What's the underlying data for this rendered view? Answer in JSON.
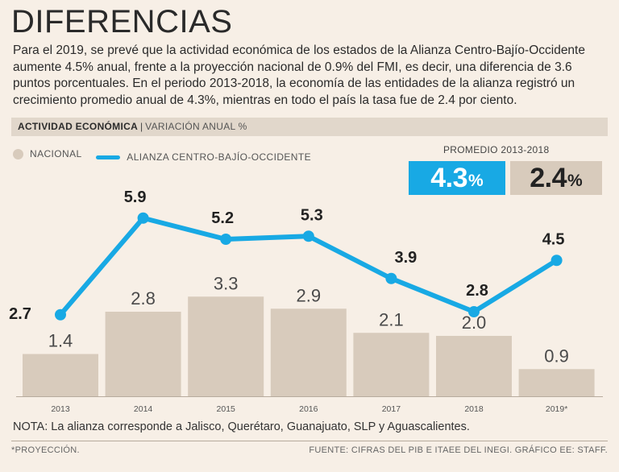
{
  "title": "DIFERENCIAS",
  "intro": "Para el 2019, se prevé que la actividad económica de los estados de la Alianza Centro-Bajío-Occidente aumente 4.5% anual, frente a la proyección nacional de 0.9% del FMI, es decir, una diferencia de 3.6 puntos porcentuales. En el periodo 2013-2018, la economía de las entidades de la alianza registró un crecimiento promedio anual de 4.3%, mientras en todo el país la tasa fue de 2.4 por ciento.",
  "section": {
    "bold": "ACTIVIDAD ECONÓMICA",
    "separator": "|",
    "light": "VARIACIÓN ANUAL %"
  },
  "legend": {
    "national": "NACIONAL",
    "alliance": "ALIANZA CENTRO-BAJÍO-OCCIDENTE"
  },
  "averages": {
    "title": "PROMEDIO 2013-2018",
    "alliance_value": "4.3",
    "national_value": "2.4",
    "unit": "%"
  },
  "colors": {
    "alliance": "#18a9e4",
    "national": "#d8cbbc"
  },
  "chart_data": {
    "type": "bar+line",
    "categories": [
      "2013",
      "2014",
      "2015",
      "2016",
      "2017",
      "2018",
      "2019*"
    ],
    "series": [
      {
        "name": "NACIONAL",
        "kind": "bar",
        "values": [
          1.4,
          2.8,
          3.3,
          2.9,
          2.1,
          2.0,
          0.9
        ],
        "labels": [
          "1.4",
          "2.8",
          "3.3",
          "2.9",
          "2.1",
          "2.0",
          "0.9"
        ]
      },
      {
        "name": "ALIANZA CENTRO-BAJÍO-OCCIDENTE",
        "kind": "line",
        "values": [
          2.7,
          5.9,
          5.2,
          5.3,
          3.9,
          2.8,
          4.5
        ],
        "labels": [
          "2.7",
          "5.9",
          "5.2",
          "5.3",
          "3.9",
          "2.8",
          "4.5"
        ]
      }
    ],
    "title": "ACTIVIDAD ECONÓMICA",
    "ylabel": "VARIACIÓN ANUAL %",
    "ylim": [
      0,
      6
    ]
  },
  "note": "NOTA: La alianza corresponde a Jalisco, Querétaro, Guanajuato, SLP y Aguascalientes.",
  "footer": {
    "left": "*PROYECCIÓN.",
    "right": "FUENTE: CIFRAS DEL PIB E ITAEE DEL INEGI. GRÁFICO EE: STAFF."
  }
}
